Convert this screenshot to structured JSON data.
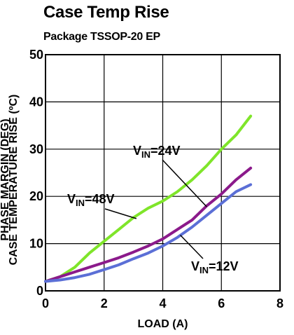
{
  "chart_data": {
    "type": "line",
    "title": "Case Temp Rise",
    "subtitle": "Package TSSOP-20 EP",
    "xlabel": "LOAD (A)",
    "ylabel_lines": [
      "PHASE MARGIN (DEG)",
      "CASE TEMPERATURE RISE (ºC)"
    ],
    "xlim": [
      0,
      8
    ],
    "ylim": [
      0,
      50
    ],
    "xticks": [
      "0",
      "2",
      "4",
      "6",
      "8"
    ],
    "yticks": [
      "0",
      "10",
      "20",
      "30",
      "40",
      "50"
    ],
    "grid": true,
    "series": [
      {
        "name_main": "V",
        "name_sub": "IN",
        "name_tail": "=48V",
        "color": "#7fe52a",
        "x": [
          0,
          0.5,
          1,
          1.5,
          2,
          2.5,
          3,
          3.5,
          4,
          4.5,
          5,
          5.5,
          6,
          6.5,
          7
        ],
        "y": [
          2,
          3,
          5,
          8,
          10.5,
          13,
          15.5,
          17.5,
          19,
          21,
          23.5,
          26.5,
          30,
          33,
          37
        ]
      },
      {
        "name_main": "V",
        "name_sub": "IN",
        "name_tail": "=24V",
        "color": "#8b1a8b",
        "x": [
          0,
          0.5,
          1,
          1.5,
          2,
          2.5,
          3,
          3.5,
          4,
          4.5,
          5,
          5.5,
          6,
          6.5,
          7
        ],
        "y": [
          2,
          3,
          4,
          5,
          6,
          7,
          8.2,
          9.5,
          11,
          13,
          15,
          18,
          20.5,
          23.5,
          26
        ]
      },
      {
        "name_main": "V",
        "name_sub": "IN",
        "name_tail": "=12V",
        "color": "#5b6fd6",
        "x": [
          0,
          0.5,
          1,
          1.5,
          2,
          2.5,
          3,
          3.5,
          4,
          4.5,
          5,
          5.5,
          6,
          6.5,
          7
        ],
        "y": [
          2,
          2.3,
          2.8,
          3.5,
          4.5,
          5.5,
          6.8,
          8,
          9.5,
          11.3,
          13.5,
          16,
          18.5,
          21,
          22.5
        ]
      }
    ]
  }
}
